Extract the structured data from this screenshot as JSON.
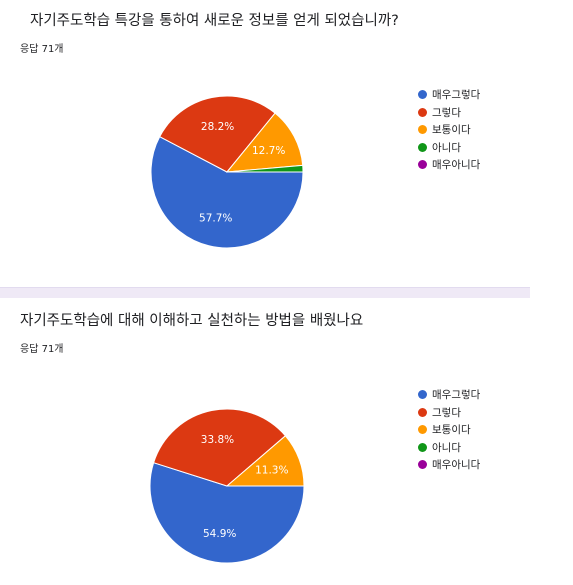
{
  "chart_data": [
    {
      "type": "pie",
      "title": "자기주도학습 특강을 통하여 새로운 정보를 얻게 되었습니까?",
      "subtitle": "응답 71개",
      "categories": [
        "매우그렇다",
        "그렇다",
        "보통이다",
        "아니다",
        "매우아니다"
      ],
      "values": [
        57.7,
        28.2,
        12.7,
        1.4,
        0
      ],
      "data_labels": [
        "57.7%",
        "28.2%",
        "12.7%",
        "",
        ""
      ],
      "colors": [
        "#3366cc",
        "#dc3912",
        "#ff9900",
        "#109618",
        "#990099"
      ],
      "legend_position": "right"
    },
    {
      "type": "pie",
      "title": "자기주도학습에 대해 이해하고 실천하는 방법을 배웠나요",
      "subtitle": "응답 71개",
      "categories": [
        "매우그렇다",
        "그렇다",
        "보통이다",
        "아니다",
        "매우아니다"
      ],
      "values": [
        54.9,
        33.8,
        11.3,
        0,
        0
      ],
      "data_labels": [
        "54.9%",
        "33.8%",
        "11.3%",
        "",
        ""
      ],
      "colors": [
        "#3366cc",
        "#dc3912",
        "#ff9900",
        "#109618",
        "#990099"
      ],
      "legend_position": "right"
    }
  ]
}
